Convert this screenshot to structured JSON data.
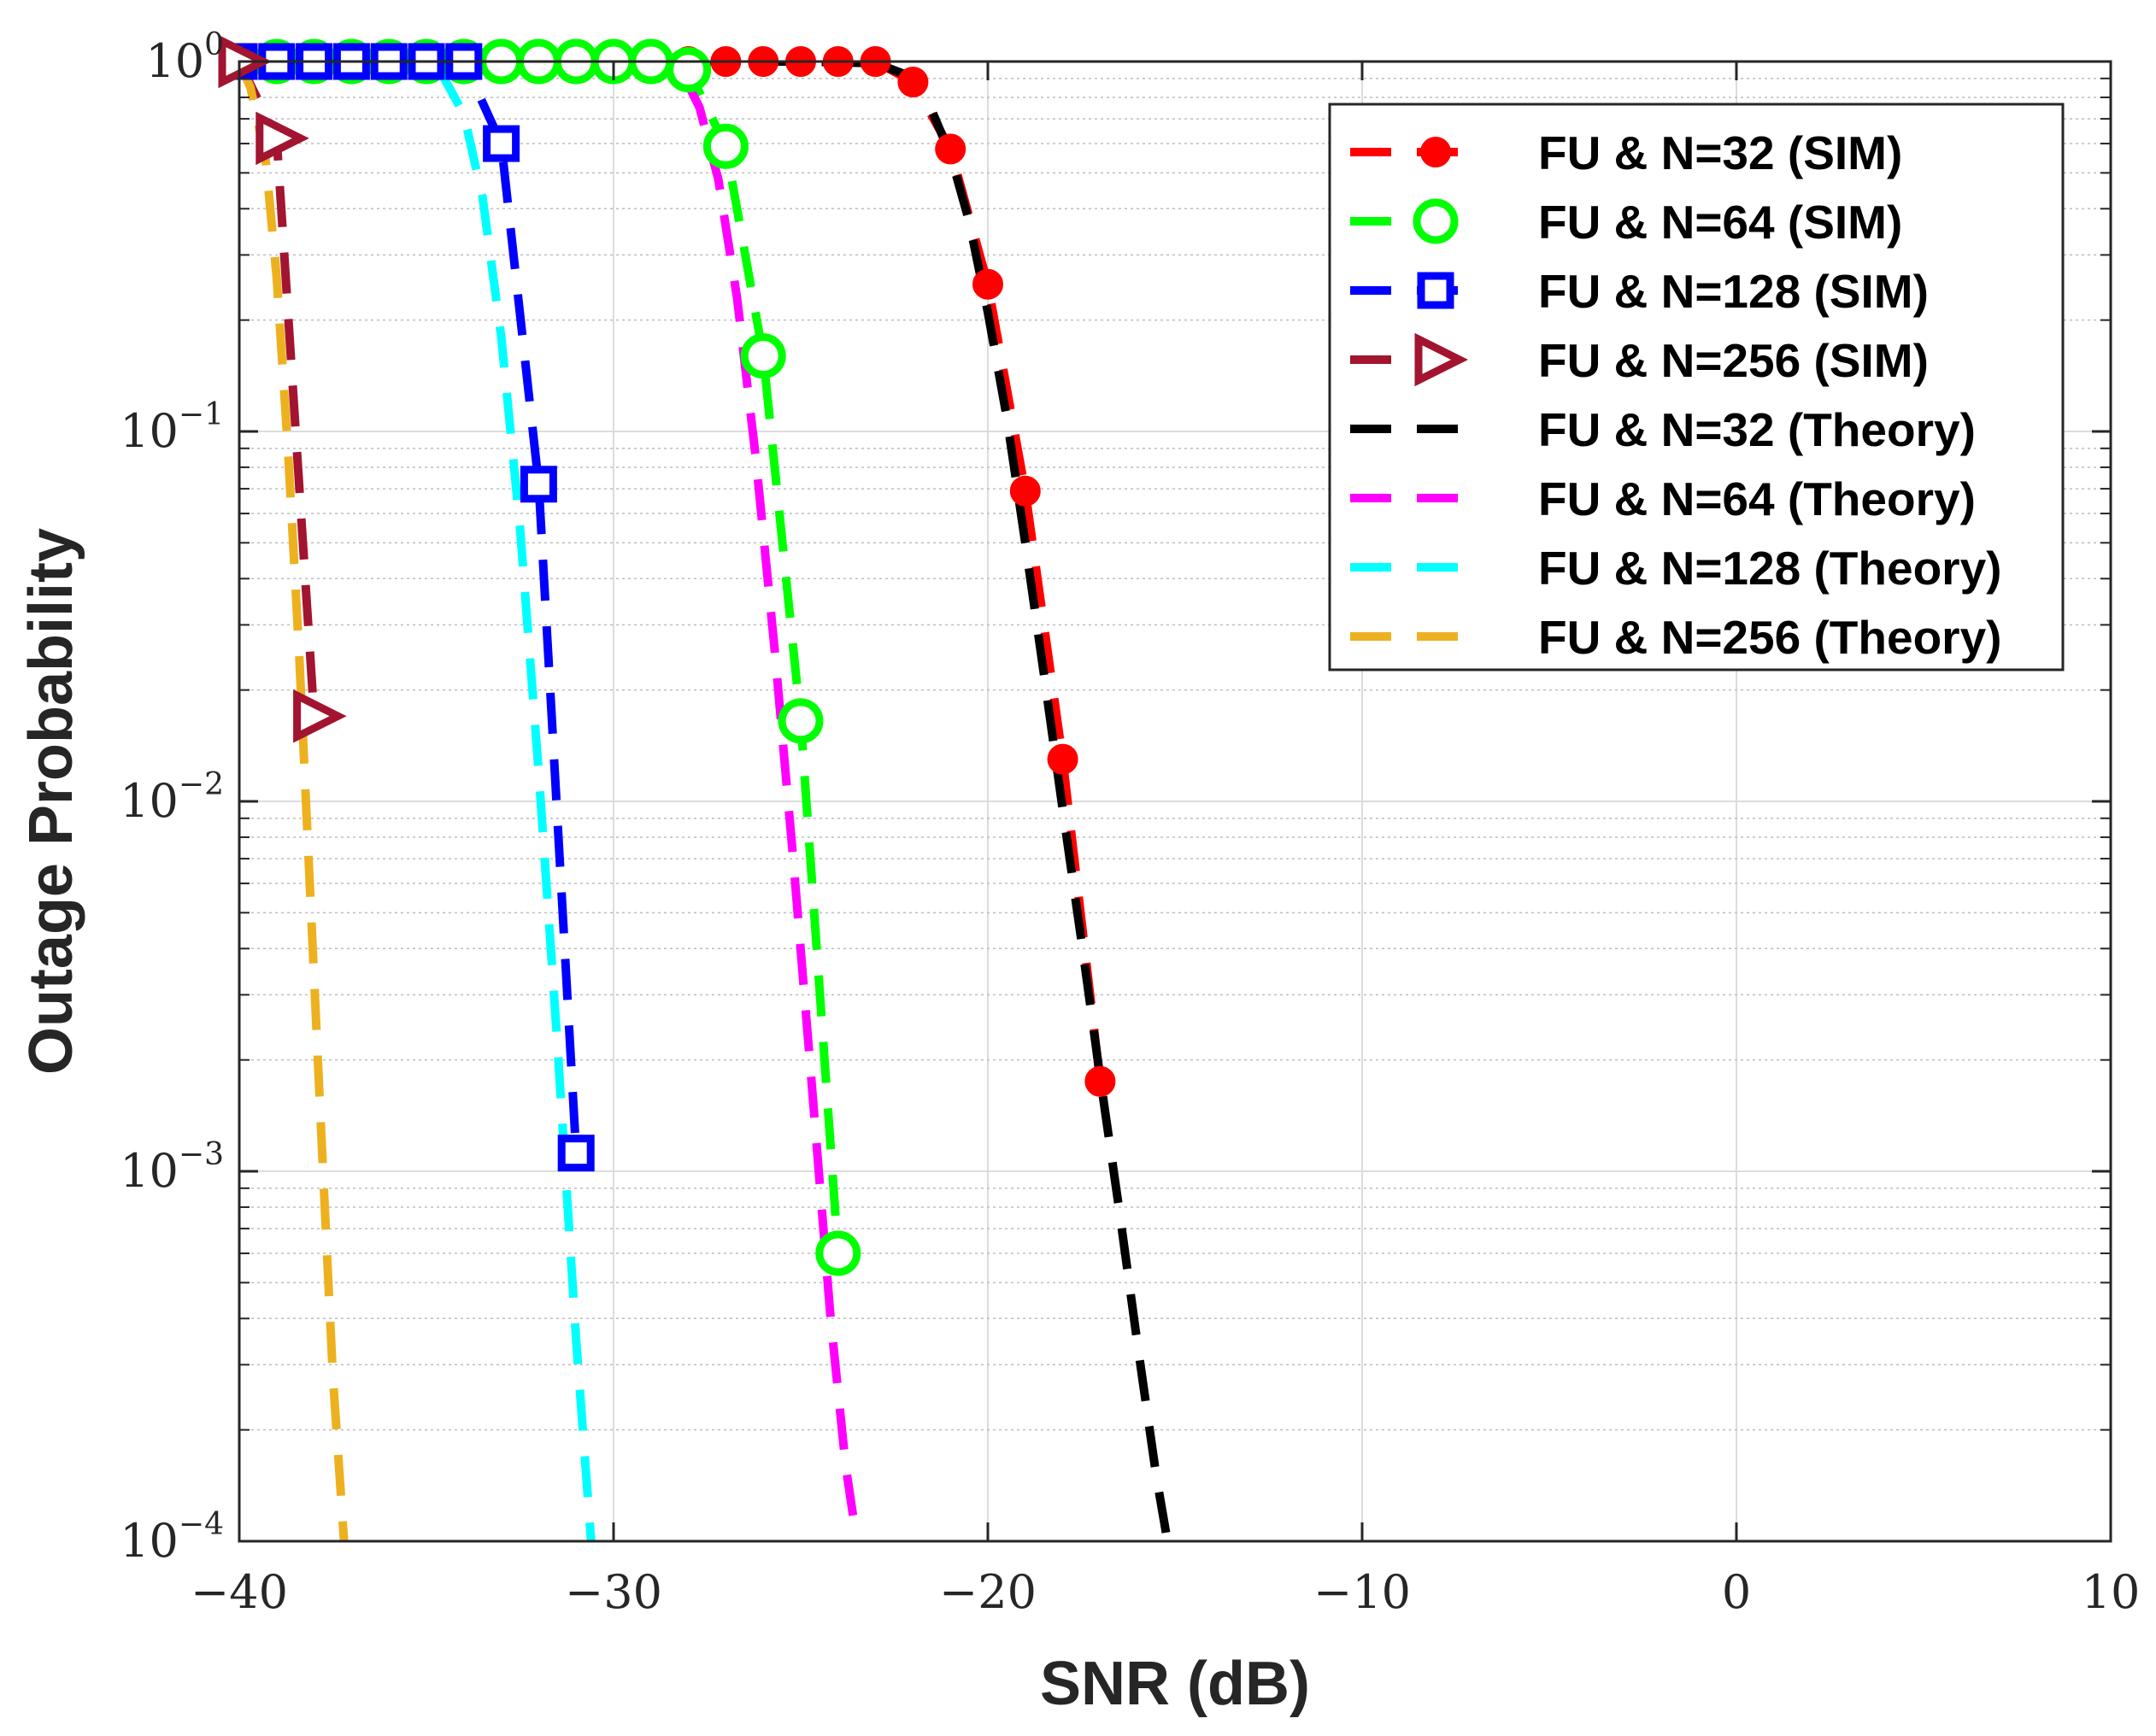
{
  "chart_data": {
    "type": "line",
    "title": "",
    "xlabel": "SNR (dB)",
    "ylabel": "Outage Probability",
    "xlim": [
      -40,
      10
    ],
    "ylim": [
      0.0001,
      1
    ],
    "yscale": "log",
    "grid": true,
    "legend_position": "top-right",
    "x_ticks": [
      -40,
      -30,
      -20,
      -10,
      0,
      10
    ],
    "x_tick_labels": [
      "−40",
      "−30",
      "−20",
      "−10",
      "0",
      "10"
    ],
    "y_ticks": [
      {
        "value": 1,
        "base": "10",
        "exp": "0"
      },
      {
        "value": 0.1,
        "base": "10",
        "exp": "−1"
      },
      {
        "value": 0.01,
        "base": "10",
        "exp": "−2"
      },
      {
        "value": 0.001,
        "base": "10",
        "exp": "−3"
      },
      {
        "value": 0.0001,
        "base": "10",
        "exp": "−4"
      }
    ],
    "series": [
      {
        "name": "FU & N=32 (SIM)",
        "kind": "sim",
        "color": "#ff0000",
        "marker": "filled-circle",
        "x": [
          -28,
          -27,
          -26,
          -25,
          -24,
          -23,
          -22,
          -21,
          -20,
          -19,
          -18,
          -17
        ],
        "y": [
          1,
          1,
          1,
          1,
          1,
          1,
          0.88,
          0.58,
          0.25,
          0.069,
          0.013,
          0.00175
        ]
      },
      {
        "name": "FU & N=64 (SIM)",
        "kind": "sim",
        "color": "#00ff00",
        "marker": "open-circle",
        "x": [
          -39,
          -38,
          -37,
          -36,
          -35,
          -34,
          -33,
          -32,
          -31,
          -30,
          -29,
          -28,
          -27,
          -26,
          -25,
          -24
        ],
        "y": [
          1,
          1,
          1,
          1,
          1,
          1,
          1,
          1,
          1,
          1,
          1,
          0.95,
          0.59,
          0.16,
          0.0165,
          0.0006
        ]
      },
      {
        "name": "FU & N=128 (SIM)",
        "kind": "sim",
        "color": "#0000ff",
        "marker": "open-square",
        "x": [
          -40,
          -39,
          -38,
          -37,
          -36,
          -35,
          -34,
          -33,
          -32,
          -31
        ],
        "y": [
          1,
          1,
          1,
          1,
          1,
          1,
          1,
          0.6,
          0.072,
          0.00112
        ]
      },
      {
        "name": "FU & N=256 (SIM)",
        "kind": "sim",
        "color": "#a2142f",
        "marker": "open-triangle-right",
        "x": [
          -40,
          -39,
          -38
        ],
        "y": [
          1,
          0.62,
          0.017
        ]
      },
      {
        "name": "FU & N=32 (Theory)",
        "kind": "theory",
        "color": "#000000",
        "marker": "none",
        "x": [
          -28,
          -25,
          -23,
          -22.3,
          -21.6,
          -21,
          -20.5,
          -20,
          -19.5,
          -19,
          -18.5,
          -18,
          -17.5,
          -17,
          -16.5,
          -16,
          -15.5,
          -15.2
        ],
        "y": [
          1,
          1,
          0.99,
          0.93,
          0.78,
          0.56,
          0.37,
          0.21,
          0.11,
          0.05,
          0.022,
          0.0095,
          0.0042,
          0.0018,
          0.0008,
          0.00034,
          0.00015,
          0.0001
        ]
      },
      {
        "name": "FU & N=64 (Theory)",
        "kind": "theory",
        "color": "#ff00ff",
        "marker": "none",
        "x": [
          -33,
          -29,
          -28.2,
          -27.7,
          -27.2,
          -26.7,
          -26.2,
          -25.7,
          -25.2,
          -24.7,
          -24.2,
          -23.8,
          -23.5
        ],
        "y": [
          1,
          1,
          0.95,
          0.75,
          0.48,
          0.23,
          0.085,
          0.026,
          0.007,
          0.0017,
          0.0004,
          0.00016,
          0.0001
        ]
      },
      {
        "name": "FU & N=128 (Theory)",
        "kind": "theory",
        "color": "#00ffff",
        "marker": "none",
        "x": [
          -40,
          -35.5,
          -34.6,
          -34,
          -33.5,
          -33,
          -32.5,
          -32,
          -31.5,
          -31,
          -30.6
        ],
        "y": [
          1,
          1,
          0.93,
          0.72,
          0.43,
          0.18,
          0.055,
          0.012,
          0.0022,
          0.00035,
          0.0001
        ]
      },
      {
        "name": "FU & N=256 (Theory)",
        "kind": "theory",
        "color": "#edb120",
        "marker": "none",
        "x": [
          -40,
          -39.7,
          -39.3,
          -39,
          -38.7,
          -38.4,
          -38.1,
          -37.8,
          -37.5,
          -37.2
        ],
        "y": [
          1,
          0.85,
          0.55,
          0.26,
          0.09,
          0.025,
          0.0055,
          0.0012,
          0.00028,
          0.0001
        ]
      }
    ]
  }
}
